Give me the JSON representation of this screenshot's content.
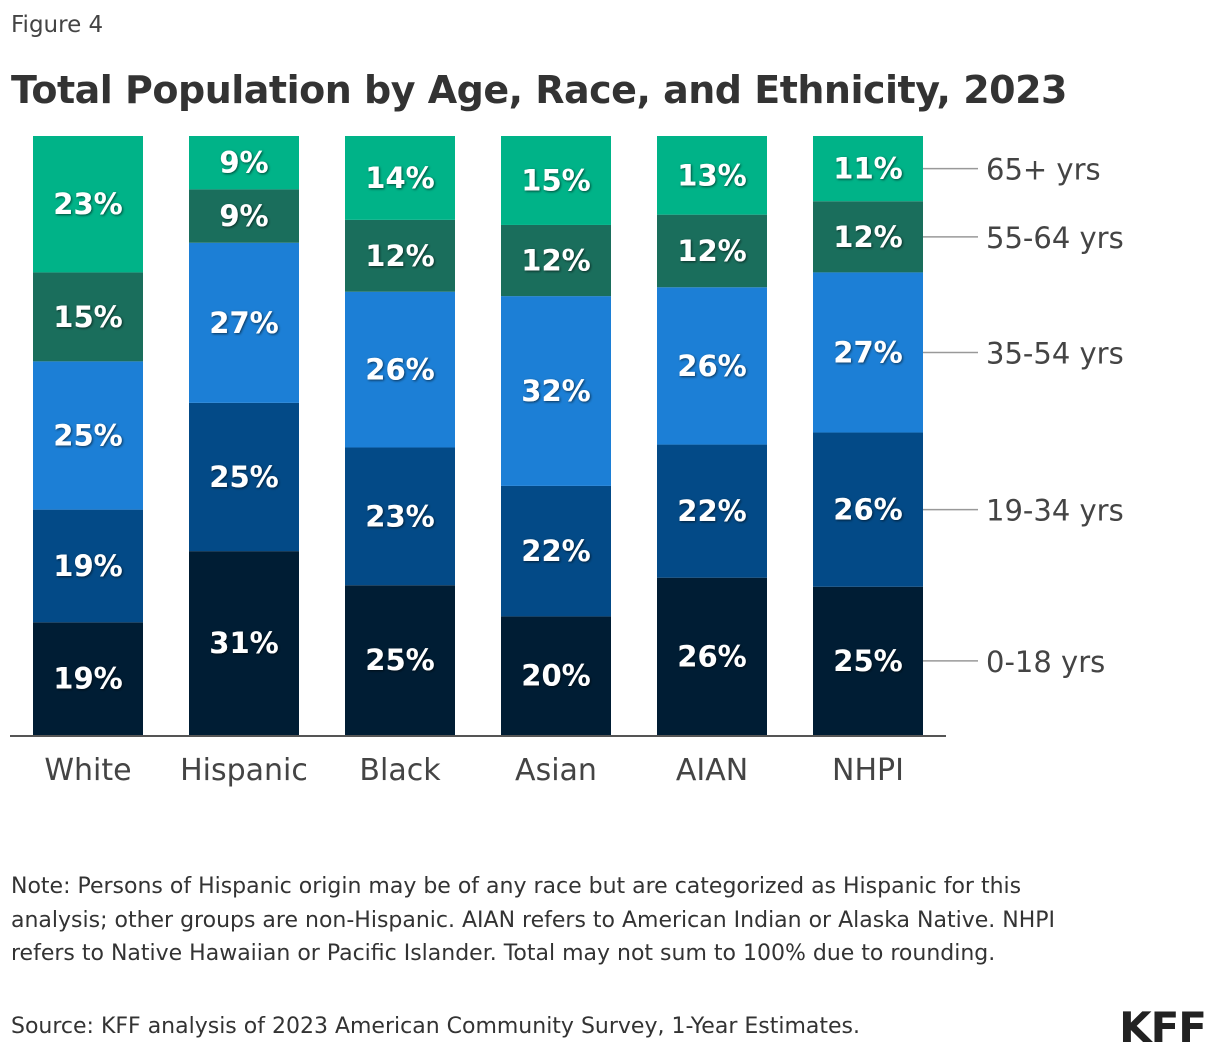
{
  "figure_label": "Figure 4",
  "title": "Total Population by Age, Race, and Ethnicity, 2023",
  "note": "Note: Persons of Hispanic origin may be of any race but are categorized as Hispanic for this analysis; other groups are non-Hispanic. AIAN refers to American Indian or Alaska Native. NHPI refers to Native Hawaiian or Pacific Islander. Total may not sum to 100% due to rounding.",
  "source": "Source: KFF analysis of 2023 American Community Survey, 1-Year Estimates.",
  "logo": "KFF",
  "chart_data": {
    "type": "bar",
    "stacked": true,
    "orientation": "vertical",
    "normalized_to_100": true,
    "title": "Total Population by Age, Race, and Ethnicity, 2023",
    "categories": [
      "White",
      "Hispanic",
      "Black",
      "Asian",
      "AIAN",
      "NHPI"
    ],
    "legend_placement": "right",
    "value_format": "percent",
    "series": [
      {
        "name": "0-18 yrs",
        "color": "#001d34",
        "values": [
          19,
          31,
          25,
          20,
          26,
          25
        ]
      },
      {
        "name": "19-34 yrs",
        "color": "#034a87",
        "values": [
          19,
          25,
          23,
          22,
          22,
          26
        ]
      },
      {
        "name": "35-54 yrs",
        "color": "#1c7fd6",
        "values": [
          25,
          27,
          26,
          32,
          26,
          27
        ]
      },
      {
        "name": "55-64 yrs",
        "color": "#1a6e5c",
        "values": [
          15,
          9,
          12,
          12,
          12,
          12
        ]
      },
      {
        "name": "65+ yrs",
        "color": "#00b388",
        "values": [
          23,
          9,
          14,
          15,
          13,
          11
        ]
      }
    ]
  }
}
